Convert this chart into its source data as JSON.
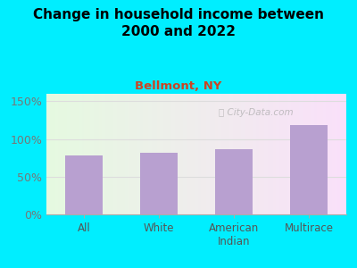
{
  "title": "Change in household income between\n2000 and 2022",
  "subtitle": "Bellmont, NY",
  "categories": [
    "All",
    "White",
    "American\nIndian",
    "Multirace"
  ],
  "values": [
    78,
    82,
    87,
    118
  ],
  "bar_color": "#b8a0d0",
  "title_fontsize": 11,
  "subtitle_fontsize": 9.5,
  "subtitle_color": "#cc4422",
  "background_outer": "#00eeff",
  "yticks": [
    0,
    50,
    100,
    150
  ],
  "ylim": [
    0,
    160
  ],
  "watermark": "City-Data.com",
  "tick_label_color": "#777777",
  "axis_label_color": "#555555",
  "grid_color": "#dddddd"
}
